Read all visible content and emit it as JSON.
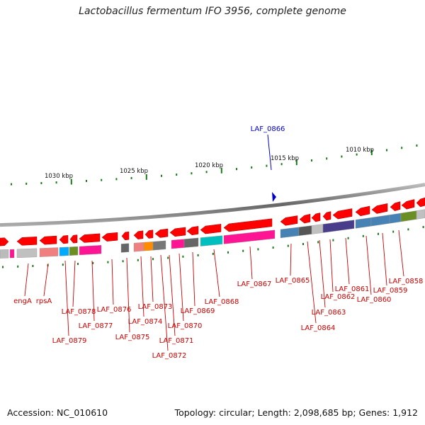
{
  "title": "Lactobacillus fermentum IFO 3956, complete genome",
  "highlight": {
    "label": "LAF_0866",
    "color": "#0000cc"
  },
  "scale_ticks": [
    {
      "label": "1030 kbp"
    },
    {
      "label": "1025 kbp"
    },
    {
      "label": "1020 kbp"
    },
    {
      "label": "1015 kbp"
    },
    {
      "label": "1010 kbp"
    }
  ],
  "genes": [
    {
      "label": "engA"
    },
    {
      "label": "rpsA"
    },
    {
      "label": "LAF_0879"
    },
    {
      "label": "LAF_0878"
    },
    {
      "label": "LAF_0877"
    },
    {
      "label": "LAF_0876"
    },
    {
      "label": "LAF_0875"
    },
    {
      "label": "LAF_0874"
    },
    {
      "label": "LAF_0873"
    },
    {
      "label": "LAF_0872"
    },
    {
      "label": "LAF_0871"
    },
    {
      "label": "LAF_0870"
    },
    {
      "label": "LAF_0869"
    },
    {
      "label": "LAF_0868"
    },
    {
      "label": "LAF_0867"
    },
    {
      "label": "LAF_0865"
    },
    {
      "label": "LAF_0864"
    },
    {
      "label": "LAF_0863"
    },
    {
      "label": "LAF_0862"
    },
    {
      "label": "LAF_0861"
    },
    {
      "label": "LAF_0860"
    },
    {
      "label": "LAF_0859"
    },
    {
      "label": "LAF_0858"
    }
  ],
  "colors": {
    "gene_arrow": "#ff0000",
    "gene_label": "#cc0000",
    "backbone": "#888888",
    "tick": "#1a7a1a"
  },
  "footer": {
    "accession": "Accession: NC_010610",
    "summary": "Topology: circular; Length: 2,098,685 bp; Genes: 1,912"
  }
}
